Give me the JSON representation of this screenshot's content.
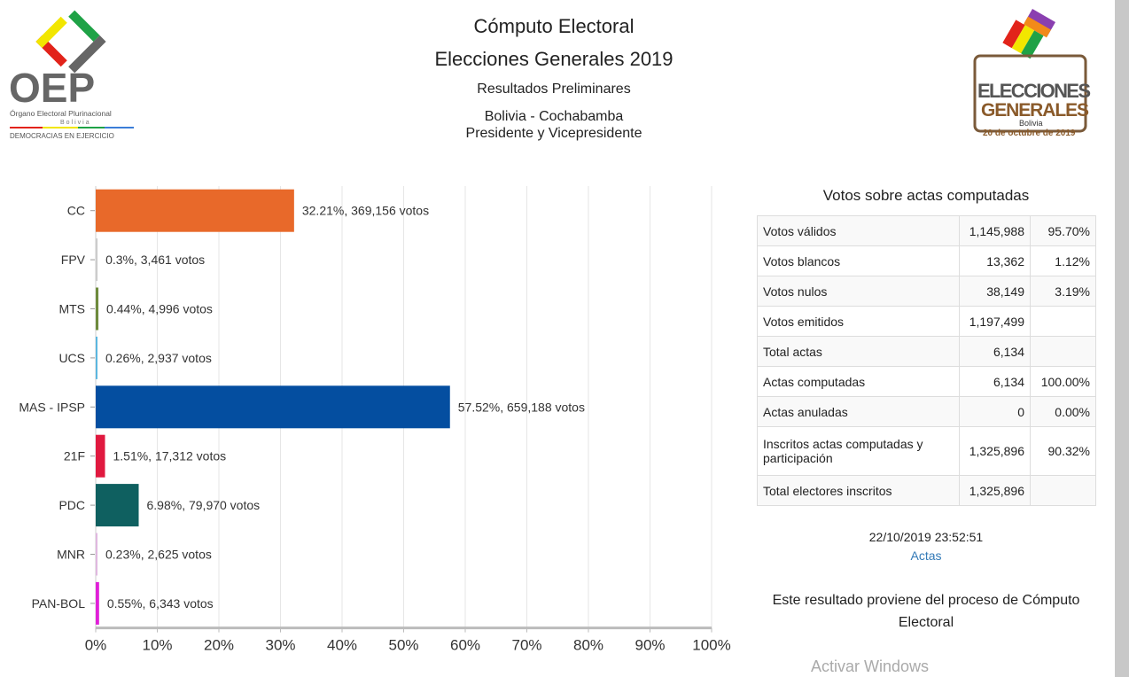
{
  "header": {
    "title": "Cómputo Electoral",
    "subtitle": "Elecciones Generales 2019",
    "status": "Resultados Preliminares",
    "region": "Bolivia - Cochabamba",
    "office": "Presidente y Vicepresidente"
  },
  "logos": {
    "oep": {
      "text": "OEP",
      "line1": "Órgano Electoral Plurinacional",
      "line2": "Bolivia",
      "line3": "DEMOCRACIAS EN EJERCICIO"
    },
    "elecciones": {
      "line1": "ELECCIONES",
      "line2": "GENERALES",
      "line3": "Bolivia",
      "line4": "20 de octubre de 2019"
    }
  },
  "chart_data": {
    "type": "bar",
    "orientation": "horizontal",
    "categories": [
      "CC",
      "FPV",
      "MTS",
      "UCS",
      "MAS - IPSP",
      "21F",
      "PDC",
      "MNR",
      "PAN-BOL"
    ],
    "values": [
      32.21,
      0.3,
      0.44,
      0.26,
      57.52,
      1.51,
      6.98,
      0.23,
      0.55
    ],
    "votes": [
      369156,
      3461,
      4996,
      2937,
      659188,
      17312,
      79970,
      2625,
      6343
    ],
    "data_labels": [
      "32.21%,  369,156 votos",
      "0.3%,  3,461 votos",
      "0.44%,  4,996 votos",
      "0.26%,  2,937 votos",
      "57.52%,  659,188 votos",
      "1.51%,  17,312 votos",
      "6.98%,  79,970 votos",
      "0.23%,  2,625 votos",
      "0.55%,  6,343 votos"
    ],
    "colors": [
      "#e8692a",
      "#cccccc",
      "#6e8b3d",
      "#5bb7e0",
      "#044ea0",
      "#e0193f",
      "#0f6060",
      "#e0b8e0",
      "#e020d8"
    ],
    "xlim": [
      0,
      100
    ],
    "xticks": [
      "0%",
      "10%",
      "20%",
      "30%",
      "40%",
      "50%",
      "60%",
      "70%",
      "80%",
      "90%",
      "100%"
    ],
    "grid": true
  },
  "summary": {
    "title": "Votos sobre actas computadas",
    "rows": [
      [
        "Votos válidos",
        "1,145,988",
        "95.70%"
      ],
      [
        "Votos blancos",
        "13,362",
        "1.12%"
      ],
      [
        "Votos nulos",
        "38,149",
        "3.19%"
      ],
      [
        "Votos emitidos",
        "1,197,499",
        ""
      ],
      [
        "Total actas",
        "6,134",
        ""
      ],
      [
        "Actas computadas",
        "6,134",
        "100.00%"
      ],
      [
        "Actas anuladas",
        "0",
        "0.00%"
      ],
      [
        "Inscritos actas computadas y participación",
        "1,325,896",
        "90.32%"
      ],
      [
        "Total electores inscritos",
        "1,325,896",
        ""
      ]
    ],
    "timestamp": "22/10/2019 23:52:51",
    "link": "Actas",
    "note": "Este resultado proviene del proceso de Cómputo Electoral"
  },
  "watermark": "Activar Windows"
}
